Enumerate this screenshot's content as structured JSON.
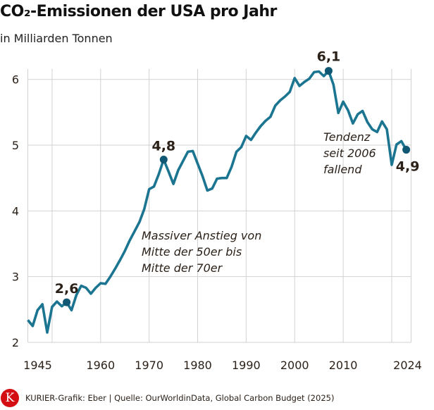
{
  "chart_data": {
    "type": "line",
    "title": "CO₂-Emissionen der USA pro Jahr",
    "subtitle": "in Milliarden Tonnen",
    "xlim": [
      1945,
      2024
    ],
    "ylim": [
      2,
      6
    ],
    "grid": true,
    "x_tick_labels": [
      "1945",
      "1960",
      "1970",
      "1980",
      "1990",
      "2000",
      "2010",
      "2024"
    ],
    "x_tick_values": [
      1945,
      1960,
      1970,
      1980,
      1990,
      2000,
      2010,
      2024
    ],
    "x_gridlines": [
      1950,
      1960,
      1970,
      1980,
      1990,
      2000,
      2010,
      2020
    ],
    "y_ticks": [
      2,
      3,
      4,
      5,
      6
    ],
    "x": [
      1945,
      1946,
      1947,
      1948,
      1949,
      1950,
      1951,
      1952,
      1953,
      1954,
      1955,
      1956,
      1957,
      1958,
      1959,
      1960,
      1961,
      1962,
      1963,
      1964,
      1965,
      1966,
      1967,
      1968,
      1969,
      1970,
      1971,
      1972,
      1973,
      1974,
      1975,
      1976,
      1977,
      1978,
      1979,
      1980,
      1981,
      1982,
      1983,
      1984,
      1985,
      1986,
      1987,
      1988,
      1989,
      1990,
      1991,
      1992,
      1993,
      1994,
      1995,
      1996,
      1997,
      1998,
      1999,
      2000,
      2001,
      2002,
      2003,
      2004,
      2005,
      2006,
      2007,
      2008,
      2009,
      2010,
      2011,
      2012,
      2013,
      2014,
      2015,
      2016,
      2017,
      2018,
      2019,
      2020,
      2021,
      2022,
      2023
    ],
    "series": [
      {
        "color": "#1b7591",
        "values": [
          2.34,
          2.25,
          2.49,
          2.58,
          2.15,
          2.54,
          2.62,
          2.55,
          2.61,
          2.49,
          2.72,
          2.86,
          2.83,
          2.74,
          2.83,
          2.9,
          2.89,
          3.0,
          3.12,
          3.25,
          3.39,
          3.55,
          3.69,
          3.83,
          4.03,
          4.33,
          4.37,
          4.56,
          4.78,
          4.6,
          4.41,
          4.62,
          4.76,
          4.9,
          4.91,
          4.72,
          4.53,
          4.31,
          4.34,
          4.49,
          4.5,
          4.5,
          4.67,
          4.9,
          4.97,
          5.14,
          5.08,
          5.19,
          5.29,
          5.37,
          5.43,
          5.6,
          5.68,
          5.74,
          5.81,
          6.02,
          5.9,
          5.96,
          6.01,
          6.11,
          6.12,
          6.05,
          6.13,
          5.92,
          5.49,
          5.66,
          5.53,
          5.33,
          5.47,
          5.52,
          5.35,
          5.24,
          5.2,
          5.36,
          5.24,
          4.7,
          5.01,
          5.06,
          4.93
        ]
      }
    ],
    "highlights": [
      {
        "x": 1953,
        "y": 2.61,
        "label": "2,6"
      },
      {
        "x": 1973,
        "y": 4.78,
        "label": "4,8"
      },
      {
        "x": 2007,
        "y": 6.13,
        "label": "6,1"
      },
      {
        "x": 2023,
        "y": 4.93,
        "label": "4,9"
      }
    ],
    "annotations": [
      {
        "lines": [
          "Massiver Anstieg von",
          "Mitte der 50er bis",
          "Mitte der 70er"
        ]
      },
      {
        "lines": [
          "Tendenz",
          "seit 2006",
          "fallend"
        ]
      }
    ],
    "dot_color": "#0f5773"
  },
  "footer": {
    "logo_letter": "K",
    "credit": "KURIER-Grafik: Eber | Quelle: OurWorldinData, Global Carbon Budget (2025)"
  }
}
